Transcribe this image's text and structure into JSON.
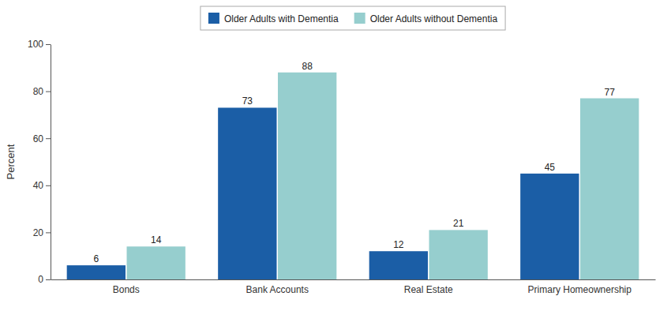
{
  "chart_data": {
    "type": "bar",
    "categories": [
      "Bonds",
      "Bank Accounts",
      "Real Estate",
      "Primary Homeownership"
    ],
    "series": [
      {
        "name": "Older Adults with Dementia",
        "color": "#1b5ea6",
        "values": [
          6,
          73,
          12,
          45
        ]
      },
      {
        "name": "Older Adults without Dementia",
        "color": "#96cece",
        "values": [
          14,
          88,
          21,
          77
        ]
      }
    ],
    "ylabel": "Percent",
    "ylim": [
      0,
      100
    ],
    "yticks": [
      0,
      20,
      40,
      60,
      80,
      100
    ],
    "grid": false,
    "legend": "top",
    "data_labels": true
  }
}
